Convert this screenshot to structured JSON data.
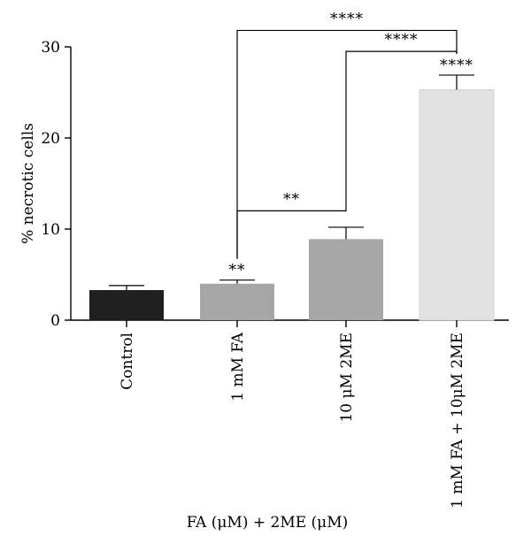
{
  "chart_data": {
    "type": "bar",
    "title": "",
    "ylabel": "% necrotic cells",
    "xlabel": "FA (μM) + 2ME (μM)",
    "ylim": [
      0,
      30
    ],
    "yticks": [
      0,
      10,
      20,
      30
    ],
    "categories": [
      "Control",
      "1 mM FA",
      "10 μM 2ME",
      "1 mM FA + 10μM 2ME"
    ],
    "values": [
      3.3,
      4.0,
      8.9,
      25.3
    ],
    "errors": [
      0.5,
      0.4,
      1.3,
      1.6
    ],
    "bar_colors": [
      "#1f1f1f",
      "#a6a6a6",
      "#a6a6a6",
      "#e2e2e2"
    ],
    "bar_significance": [
      "",
      "**",
      "",
      "****"
    ],
    "comparisons": [
      {
        "from": 1,
        "to": 2,
        "label": "**",
        "level": 12
      },
      {
        "from": 2,
        "to": 3,
        "label": "****",
        "level": 29.5
      },
      {
        "from": 1,
        "to": 3,
        "label": "****",
        "level": 31.8
      }
    ],
    "grid": false,
    "legend": "none"
  }
}
